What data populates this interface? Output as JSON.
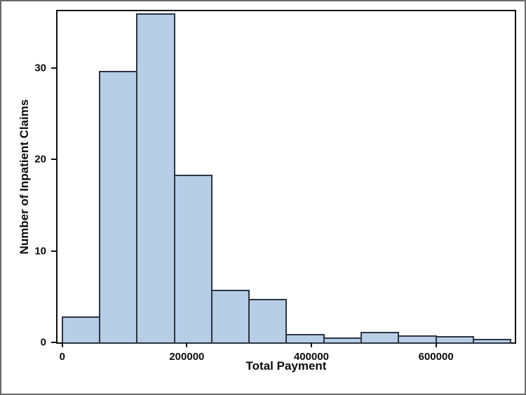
{
  "chart_data": {
    "type": "bar",
    "subtype": "histogram",
    "title": "",
    "xlabel": "Total Payment",
    "ylabel": "Number of Inpatient Claims",
    "bin_width": 60000,
    "bins": [
      {
        "x0": 0,
        "x1": 60000,
        "count": 2.7
      },
      {
        "x0": 60000,
        "x1": 120000,
        "count": 29.5
      },
      {
        "x0": 120000,
        "x1": 180000,
        "count": 35.8
      },
      {
        "x0": 180000,
        "x1": 240000,
        "count": 18.2
      },
      {
        "x0": 240000,
        "x1": 300000,
        "count": 5.6
      },
      {
        "x0": 300000,
        "x1": 360000,
        "count": 4.6
      },
      {
        "x0": 360000,
        "x1": 420000,
        "count": 0.8
      },
      {
        "x0": 420000,
        "x1": 480000,
        "count": 0.4
      },
      {
        "x0": 480000,
        "x1": 540000,
        "count": 1.0
      },
      {
        "x0": 540000,
        "x1": 600000,
        "count": 0.65
      },
      {
        "x0": 600000,
        "x1": 660000,
        "count": 0.5
      },
      {
        "x0": 660000,
        "x1": 720000,
        "count": 0.2
      }
    ],
    "x_ticks": [
      {
        "value": 0,
        "label": "0"
      },
      {
        "value": 200000,
        "label": "200000"
      },
      {
        "value": 400000,
        "label": "400000"
      },
      {
        "value": 600000,
        "label": "600000"
      }
    ],
    "y_ticks": [
      {
        "value": 0,
        "label": "0"
      },
      {
        "value": 10,
        "label": "10"
      },
      {
        "value": 20,
        "label": "20"
      },
      {
        "value": 30,
        "label": "30"
      }
    ],
    "xlim": [
      -7600,
      726500
    ],
    "ylim": [
      0,
      36.2
    ],
    "grid": false,
    "legend": false,
    "bar_fill": "#b8cde6",
    "bar_stroke": "#2b3542",
    "frame_color": "#111111"
  }
}
